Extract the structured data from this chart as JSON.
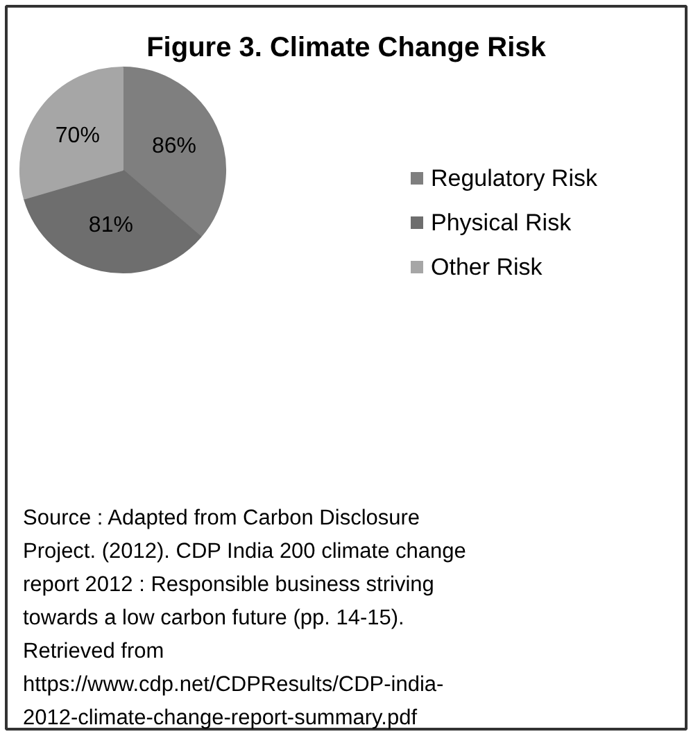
{
  "chart_data": {
    "type": "pie",
    "title": "Figure 3. Climate Change Risk",
    "categories": [
      "Regulatory Risk",
      "Physical Risk",
      "Other Risk"
    ],
    "values": [
      86,
      81,
      70
    ],
    "colors": [
      "#7f7f7f",
      "#6e6e6e",
      "#a6a6a6"
    ],
    "value_labels": [
      "86%",
      "81%",
      "70%"
    ],
    "legend": "right",
    "annotations": [
      "Source : Adapted from Carbon Disclosure\nProject. (2012). CDP India 200 climate change\nreport 2012 : Responsible business striving\ntowards  a low carbon future (pp. 14-15).\nRetrieved from\nhttps://www.cdp.net/CDPResults/CDP-india-\n2012-climate-change-report-summary.pdf"
    ]
  }
}
